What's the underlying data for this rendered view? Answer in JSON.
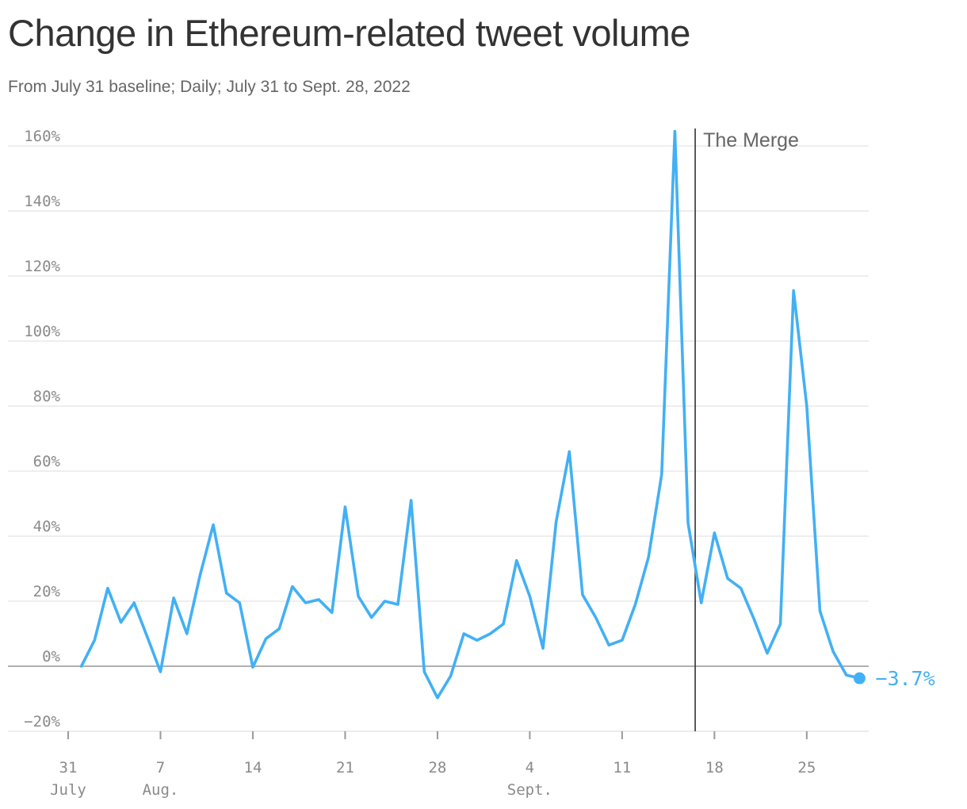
{
  "title": "Change in Ethereum-related tweet volume",
  "subtitle": "From July 31 baseline; Daily; July 31 to Sept. 28, 2022",
  "colors": {
    "line": "#42b0f5",
    "grid": "#e3e3e3",
    "zero": "#b0b0b0",
    "annotation": "#333333"
  },
  "chart_data": {
    "type": "line",
    "x_start": "2022-07-31",
    "x_end": "2022-09-28",
    "ylim": [
      -20,
      165
    ],
    "y_ticks": [
      {
        "value": -20,
        "label": "−20%"
      },
      {
        "value": 0,
        "label": "0%"
      },
      {
        "value": 20,
        "label": "20%"
      },
      {
        "value": 40,
        "label": "40%"
      },
      {
        "value": 60,
        "label": "60%"
      },
      {
        "value": 80,
        "label": "80%"
      },
      {
        "value": 100,
        "label": "100%"
      },
      {
        "value": 120,
        "label": "120%"
      },
      {
        "value": 140,
        "label": "140%"
      },
      {
        "value": 160,
        "label": "160%"
      }
    ],
    "x_ticks": [
      {
        "date": "2022-07-30",
        "label": "31",
        "month": "July"
      },
      {
        "date": "2022-08-06",
        "label": "7",
        "month": "Aug."
      },
      {
        "date": "2022-08-13",
        "label": "14",
        "month": ""
      },
      {
        "date": "2022-08-20",
        "label": "21",
        "month": ""
      },
      {
        "date": "2022-08-27",
        "label": "28",
        "month": ""
      },
      {
        "date": "2022-09-03",
        "label": "4",
        "month": "Sept."
      },
      {
        "date": "2022-09-10",
        "label": "11",
        "month": ""
      },
      {
        "date": "2022-09-17",
        "label": "18",
        "month": ""
      },
      {
        "date": "2022-09-24",
        "label": "25",
        "month": ""
      }
    ],
    "series": [
      {
        "values": [
          0,
          8,
          24,
          13.5,
          19.5,
          9,
          -1.7,
          21,
          10,
          28,
          43.5,
          22.5,
          19.5,
          -0.3,
          8.5,
          11.5,
          24.5,
          19.5,
          20.5,
          16.5,
          49,
          21.5,
          15,
          20,
          19,
          51,
          -1.7,
          -9.7,
          -3,
          10,
          8,
          10,
          13,
          32.5,
          21.5,
          5.5,
          44.5,
          66,
          22,
          15,
          6.5,
          8,
          19,
          33.5,
          59,
          164.5,
          44,
          19.5,
          41,
          27,
          24,
          14.5,
          4,
          13,
          115.5,
          80,
          17,
          4.5,
          -2.7,
          -3.7
        ]
      }
    ],
    "end_label": "−3.7%",
    "annotations": [
      {
        "date": "2022-09-15",
        "label": "The Merge"
      }
    ]
  }
}
